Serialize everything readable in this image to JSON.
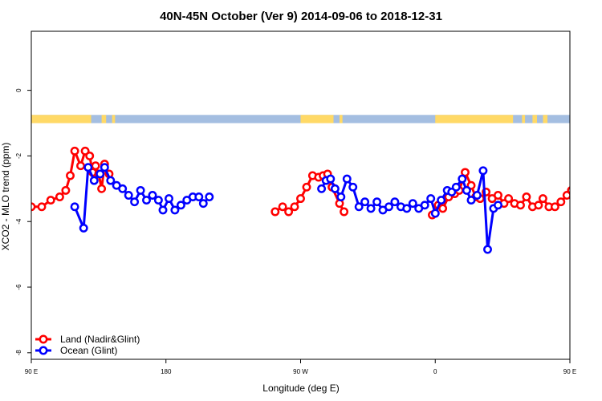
{
  "chart_data": {
    "type": "line",
    "title": "40N-45N October (Ver 9)   2014-09-06 to 2018-12-31",
    "xlabel": "Longitude (deg E)",
    "ylabel": "XCO2 - MLO trend (ppm)",
    "xlim": [
      90,
      450
    ],
    "ylim": [
      -8.2,
      1.8
    ],
    "xticks": [
      {
        "value": 90,
        "label": "90 E"
      },
      {
        "value": 180,
        "label": "180"
      },
      {
        "value": 270,
        "label": "90 W"
      },
      {
        "value": 360,
        "label": "0"
      },
      {
        "value": 450,
        "label": "90 E"
      },
      {
        "value": 540,
        "label": "180"
      }
    ],
    "yticks": [
      {
        "value": 0,
        "label": "0"
      },
      {
        "value": -2,
        "label": "-2"
      },
      {
        "value": -4,
        "label": "-4"
      },
      {
        "value": -6,
        "label": "-6"
      },
      {
        "value": -8,
        "label": "-8"
      }
    ],
    "legend_position": "bottom-left",
    "surface_band": {
      "y_range": [
        -1.0,
        -0.75
      ],
      "land_color": "#FFD966",
      "ocean_color": "#A4BEE1",
      "land_segments": [
        [
          90,
          130
        ],
        [
          137,
          140
        ],
        [
          144,
          146
        ],
        [
          270,
          292
        ],
        [
          296,
          298
        ],
        [
          360,
          412
        ],
        [
          418,
          420
        ],
        [
          425,
          428
        ],
        [
          432,
          435
        ]
      ]
    },
    "series": [
      {
        "name": "Land (Nadir&Glint)",
        "color": "#FF0000",
        "segments": [
          [
            [
              90,
              -3.55
            ],
            [
              97,
              -3.55
            ],
            [
              103,
              -3.35
            ],
            [
              109,
              -3.25
            ],
            [
              113,
              -3.05
            ],
            [
              116,
              -2.6
            ],
            [
              119,
              -1.85
            ],
            [
              123,
              -2.3
            ],
            [
              126,
              -1.85
            ],
            [
              129,
              -2.0
            ],
            [
              131,
              -2.5
            ],
            [
              133,
              -2.3
            ],
            [
              135,
              -2.55
            ],
            [
              137,
              -3.0
            ],
            [
              139,
              -2.25
            ],
            [
              142,
              -2.55
            ]
          ],
          [
            [
              253,
              -3.7
            ],
            [
              258,
              -3.55
            ],
            [
              262,
              -3.7
            ],
            [
              266,
              -3.55
            ],
            [
              270,
              -3.3
            ],
            [
              274,
              -2.95
            ],
            [
              278,
              -2.6
            ],
            [
              282,
              -2.65
            ],
            [
              285,
              -2.6
            ],
            [
              288,
              -2.55
            ],
            [
              291,
              -2.95
            ],
            [
              296,
              -3.45
            ],
            [
              299,
              -3.7
            ]
          ],
          [
            [
              358,
              -3.8
            ],
            [
              362,
              -3.5
            ],
            [
              365,
              -3.6
            ],
            [
              369,
              -3.25
            ],
            [
              373,
              -3.15
            ],
            [
              376,
              -3.05
            ],
            [
              380,
              -2.5
            ],
            [
              384,
              -2.9
            ],
            [
              387,
              -3.25
            ],
            [
              390,
              -3.3
            ],
            [
              394,
              -3.1
            ],
            [
              398,
              -3.3
            ],
            [
              402,
              -3.2
            ],
            [
              406,
              -3.45
            ],
            [
              409,
              -3.3
            ],
            [
              413,
              -3.45
            ],
            [
              417,
              -3.5
            ],
            [
              421,
              -3.25
            ],
            [
              425,
              -3.55
            ],
            [
              429,
              -3.5
            ],
            [
              432,
              -3.3
            ],
            [
              436,
              -3.55
            ],
            [
              440,
              -3.55
            ],
            [
              444,
              -3.4
            ],
            [
              448,
              -3.2
            ],
            [
              451,
              -3.05
            ]
          ]
        ]
      },
      {
        "name": "Ocean (Glint)",
        "color": "#0000FF",
        "segments": [
          [
            [
              119,
              -3.55
            ],
            [
              125,
              -4.2
            ],
            [
              128,
              -2.35
            ],
            [
              132,
              -2.75
            ],
            [
              136,
              -2.55
            ],
            [
              139,
              -2.35
            ],
            [
              143,
              -2.75
            ],
            [
              147,
              -2.9
            ],
            [
              151,
              -3.0
            ],
            [
              155,
              -3.2
            ],
            [
              159,
              -3.4
            ],
            [
              163,
              -3.05
            ],
            [
              167,
              -3.35
            ],
            [
              171,
              -3.2
            ],
            [
              175,
              -3.35
            ],
            [
              178,
              -3.65
            ],
            [
              182,
              -3.3
            ],
            [
              186,
              -3.65
            ],
            [
              190,
              -3.5
            ],
            [
              194,
              -3.35
            ],
            [
              198,
              -3.25
            ],
            [
              202,
              -3.25
            ],
            [
              205,
              -3.45
            ],
            [
              209,
              -3.25
            ]
          ],
          [
            [
              284,
              -3.0
            ],
            [
              287,
              -2.75
            ],
            [
              290,
              -2.7
            ],
            [
              293,
              -3.0
            ],
            [
              297,
              -3.25
            ],
            [
              301,
              -2.7
            ],
            [
              305,
              -2.95
            ],
            [
              309,
              -3.55
            ],
            [
              313,
              -3.4
            ],
            [
              317,
              -3.6
            ],
            [
              321,
              -3.4
            ],
            [
              325,
              -3.65
            ],
            [
              329,
              -3.55
            ],
            [
              333,
              -3.4
            ],
            [
              337,
              -3.55
            ],
            [
              341,
              -3.6
            ],
            [
              345,
              -3.45
            ],
            [
              349,
              -3.6
            ],
            [
              353,
              -3.5
            ],
            [
              357,
              -3.3
            ],
            [
              360,
              -3.75
            ],
            [
              364,
              -3.35
            ],
            [
              368,
              -3.05
            ],
            [
              371,
              -3.1
            ],
            [
              374,
              -2.95
            ],
            [
              378,
              -2.7
            ],
            [
              381,
              -3.05
            ],
            [
              384,
              -3.35
            ],
            [
              388,
              -3.2
            ],
            [
              392,
              -2.45
            ],
            [
              395,
              -4.85
            ],
            [
              399,
              -3.6
            ],
            [
              402,
              -3.5
            ]
          ]
        ]
      }
    ]
  }
}
